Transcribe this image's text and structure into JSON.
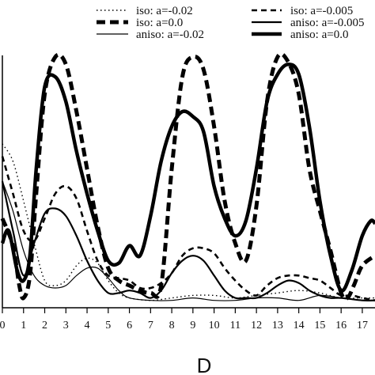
{
  "chart_data": {
    "type": "line",
    "xlabel": "D",
    "ylabel": "",
    "title": "",
    "xlim": [
      0,
      17.6
    ],
    "ylim": [
      0,
      1.0
    ],
    "xticks": [
      "0",
      "1",
      "2",
      "3",
      "4",
      "5",
      "6",
      "7",
      "8",
      "9",
      "10",
      "11",
      "12",
      "13",
      "14",
      "15",
      "16",
      "17"
    ],
    "grid": false,
    "legend_position": "top",
    "series": [
      {
        "name": "iso: a=-0.02",
        "style": "dotted-thin",
        "points": [
          [
            0,
            0.65
          ],
          [
            0.5,
            0.58
          ],
          [
            1,
            0.42
          ],
          [
            1.5,
            0.25
          ],
          [
            2,
            0.1
          ],
          [
            2.5,
            0.08
          ],
          [
            3,
            0.1
          ],
          [
            3.5,
            0.16
          ],
          [
            4,
            0.19
          ],
          [
            4.5,
            0.17
          ],
          [
            5,
            0.1
          ],
          [
            5.5,
            0.05
          ],
          [
            6,
            0.03
          ],
          [
            7,
            0.02
          ],
          [
            8,
            0.03
          ],
          [
            9,
            0.04
          ],
          [
            10,
            0.04
          ],
          [
            11,
            0.03
          ],
          [
            12,
            0.04
          ],
          [
            13,
            0.05
          ],
          [
            14,
            0.06
          ],
          [
            15,
            0.05
          ],
          [
            16,
            0.03
          ],
          [
            17,
            0.03
          ],
          [
            17.6,
            0.03
          ]
        ]
      },
      {
        "name": "iso: a=-0.005",
        "style": "dashed-thin",
        "points": [
          [
            0,
            0.6
          ],
          [
            0.5,
            0.45
          ],
          [
            1,
            0.3
          ],
          [
            1.5,
            0.26
          ],
          [
            2,
            0.35
          ],
          [
            2.5,
            0.45
          ],
          [
            3,
            0.48
          ],
          [
            3.5,
            0.43
          ],
          [
            4,
            0.3
          ],
          [
            4.5,
            0.18
          ],
          [
            5,
            0.12
          ],
          [
            5.5,
            0.11
          ],
          [
            6,
            0.1
          ],
          [
            6.5,
            0.07
          ],
          [
            7,
            0.07
          ],
          [
            7.5,
            0.09
          ],
          [
            8,
            0.13
          ],
          [
            8.5,
            0.2
          ],
          [
            9,
            0.23
          ],
          [
            9.5,
            0.23
          ],
          [
            10,
            0.21
          ],
          [
            10.5,
            0.15
          ],
          [
            11,
            0.1
          ],
          [
            11.5,
            0.06
          ],
          [
            12,
            0.04
          ],
          [
            12.5,
            0.08
          ],
          [
            13,
            0.11
          ],
          [
            13.5,
            0.12
          ],
          [
            14,
            0.12
          ],
          [
            14.5,
            0.11
          ],
          [
            15,
            0.1
          ],
          [
            15.5,
            0.07
          ],
          [
            16,
            0.04
          ],
          [
            16.5,
            0.04
          ],
          [
            17,
            0.03
          ],
          [
            17.6,
            0.02
          ]
        ]
      },
      {
        "name": "iso: a=0.0",
        "style": "dashed-thick",
        "points": [
          [
            0,
            0.35
          ],
          [
            0.5,
            0.24
          ],
          [
            0.8,
            0.08
          ],
          [
            1,
            0.03
          ],
          [
            1.3,
            0.12
          ],
          [
            1.6,
            0.45
          ],
          [
            2,
            0.85
          ],
          [
            2.5,
            1.0
          ],
          [
            3,
            0.97
          ],
          [
            3.5,
            0.78
          ],
          [
            4,
            0.55
          ],
          [
            4.5,
            0.32
          ],
          [
            5,
            0.15
          ],
          [
            5.5,
            0.1
          ],
          [
            6,
            0.08
          ],
          [
            6.5,
            0.06
          ],
          [
            7,
            0.05
          ],
          [
            7.5,
            0.08
          ],
          [
            8,
            0.55
          ],
          [
            8.5,
            0.92
          ],
          [
            9,
            1.0
          ],
          [
            9.5,
            0.95
          ],
          [
            10,
            0.72
          ],
          [
            10.5,
            0.42
          ],
          [
            11,
            0.25
          ],
          [
            11.5,
            0.18
          ],
          [
            12,
            0.4
          ],
          [
            12.5,
            0.82
          ],
          [
            13,
            1.0
          ],
          [
            13.5,
            0.98
          ],
          [
            14,
            0.85
          ],
          [
            14.5,
            0.55
          ],
          [
            15,
            0.38
          ],
          [
            15.5,
            0.22
          ],
          [
            16,
            0.05
          ],
          [
            16.3,
            0.03
          ],
          [
            16.6,
            0.08
          ],
          [
            17,
            0.16
          ],
          [
            17.6,
            0.2
          ]
        ]
      },
      {
        "name": "aniso: a=-0.005",
        "style": "solid-medium",
        "points": [
          [
            0,
            0.5
          ],
          [
            0.5,
            0.3
          ],
          [
            1,
            0.12
          ],
          [
            1.5,
            0.25
          ],
          [
            2,
            0.37
          ],
          [
            2.5,
            0.39
          ],
          [
            3,
            0.36
          ],
          [
            3.5,
            0.28
          ],
          [
            4,
            0.18
          ],
          [
            4.5,
            0.1
          ],
          [
            5,
            0.05
          ],
          [
            5.5,
            0.05
          ],
          [
            6,
            0.06
          ],
          [
            6.5,
            0.05
          ],
          [
            7,
            0.03
          ],
          [
            7.5,
            0.06
          ],
          [
            8,
            0.13
          ],
          [
            8.5,
            0.18
          ],
          [
            9,
            0.2
          ],
          [
            9.5,
            0.18
          ],
          [
            10,
            0.12
          ],
          [
            10.5,
            0.06
          ],
          [
            11,
            0.03
          ],
          [
            11.5,
            0.03
          ],
          [
            12,
            0.03
          ],
          [
            12.5,
            0.05
          ],
          [
            13,
            0.08
          ],
          [
            13.5,
            0.1
          ],
          [
            14,
            0.09
          ],
          [
            14.5,
            0.06
          ],
          [
            15,
            0.04
          ],
          [
            15.5,
            0.03
          ],
          [
            16,
            0.03
          ],
          [
            17,
            0.02
          ],
          [
            17.6,
            0.02
          ]
        ]
      },
      {
        "name": "aniso: a=-0.02",
        "style": "solid-thin",
        "points": [
          [
            0,
            0.5
          ],
          [
            0.5,
            0.38
          ],
          [
            1,
            0.22
          ],
          [
            1.5,
            0.12
          ],
          [
            2,
            0.08
          ],
          [
            2.5,
            0.07
          ],
          [
            3,
            0.08
          ],
          [
            3.5,
            0.12
          ],
          [
            4,
            0.15
          ],
          [
            4.5,
            0.15
          ],
          [
            5,
            0.11
          ],
          [
            5.5,
            0.06
          ],
          [
            6,
            0.03
          ],
          [
            7,
            0.02
          ],
          [
            8,
            0.02
          ],
          [
            9,
            0.03
          ],
          [
            10,
            0.02
          ],
          [
            11,
            0.02
          ],
          [
            12,
            0.03
          ],
          [
            13,
            0.03
          ],
          [
            14,
            0.02
          ],
          [
            15,
            0.04
          ],
          [
            16,
            0.03
          ],
          [
            17,
            0.02
          ],
          [
            17.6,
            0.02
          ]
        ]
      },
      {
        "name": "aniso: a=0.0",
        "style": "solid-thick",
        "points": [
          [
            0,
            0.25
          ],
          [
            0.3,
            0.3
          ],
          [
            0.7,
            0.14
          ],
          [
            1,
            0.1
          ],
          [
            1.3,
            0.2
          ],
          [
            1.6,
            0.55
          ],
          [
            2,
            0.88
          ],
          [
            2.5,
            0.92
          ],
          [
            3,
            0.82
          ],
          [
            3.5,
            0.62
          ],
          [
            4,
            0.45
          ],
          [
            4.5,
            0.3
          ],
          [
            5,
            0.18
          ],
          [
            5.5,
            0.17
          ],
          [
            6,
            0.24
          ],
          [
            6.5,
            0.2
          ],
          [
            7,
            0.36
          ],
          [
            7.5,
            0.58
          ],
          [
            8,
            0.72
          ],
          [
            8.5,
            0.78
          ],
          [
            9,
            0.76
          ],
          [
            9.5,
            0.7
          ],
          [
            10,
            0.48
          ],
          [
            10.5,
            0.35
          ],
          [
            11,
            0.28
          ],
          [
            11.5,
            0.34
          ],
          [
            12,
            0.55
          ],
          [
            12.5,
            0.82
          ],
          [
            13,
            0.93
          ],
          [
            13.5,
            0.97
          ],
          [
            14,
            0.93
          ],
          [
            14.5,
            0.72
          ],
          [
            15,
            0.42
          ],
          [
            15.5,
            0.2
          ],
          [
            16,
            0.06
          ],
          [
            16.5,
            0.14
          ],
          [
            17,
            0.28
          ],
          [
            17.4,
            0.34
          ],
          [
            17.6,
            0.33
          ]
        ]
      }
    ]
  }
}
